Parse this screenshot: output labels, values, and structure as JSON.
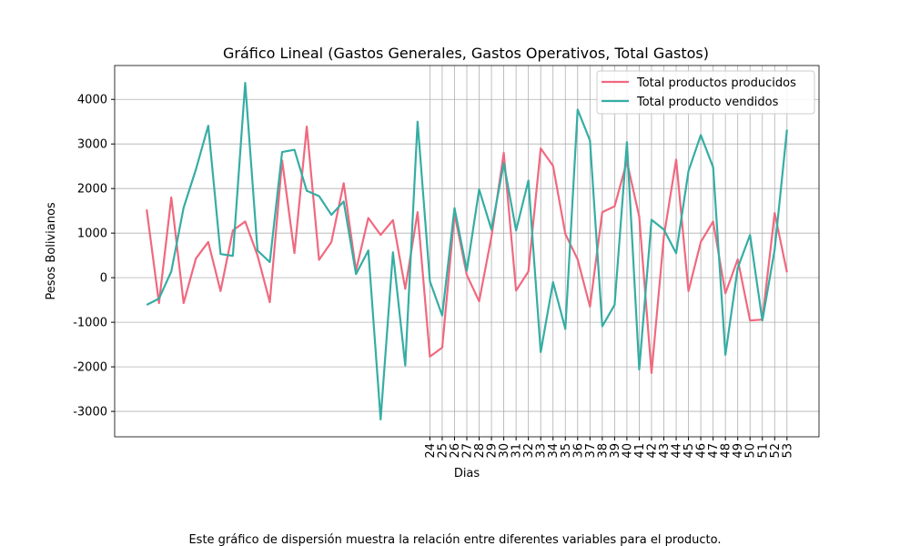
{
  "chart_data": {
    "type": "line",
    "title": "Gráfico Lineal (Gastos Generales, Gastos Operativos, Total Gastos)",
    "xlabel": "Dias",
    "ylabel": "Pesos Bolivianos",
    "caption": "Este gráfico de dispersión muestra la relación entre diferentes variables para el producto.",
    "x": [
      1,
      2,
      3,
      4,
      5,
      6,
      7,
      8,
      9,
      10,
      11,
      12,
      13,
      14,
      15,
      16,
      17,
      18,
      19,
      20,
      21,
      22,
      23,
      24,
      25,
      26,
      27,
      28,
      29,
      30,
      31,
      32,
      33,
      34,
      35,
      36,
      37,
      38,
      39,
      40,
      41,
      42,
      43,
      44,
      45,
      46,
      47,
      48,
      49,
      50,
      51,
      52,
      53
    ],
    "series": [
      {
        "name": "Total productos producidos",
        "color": "#f0697f",
        "values": [
          1530,
          -570,
          1800,
          -570,
          430,
          800,
          -300,
          1060,
          1260,
          500,
          -550,
          2630,
          550,
          3390,
          400,
          800,
          2120,
          160,
          1340,
          960,
          1290,
          -250,
          1470,
          -1770,
          -1570,
          1430,
          60,
          -530,
          920,
          2800,
          -290,
          140,
          2900,
          2510,
          980,
          410,
          -650,
          1470,
          1600,
          2610,
          1370,
          -2140,
          920,
          2650,
          -300,
          800,
          1260,
          -350,
          410,
          -960,
          -940,
          1450,
          120
        ]
      },
      {
        "name": "Total producto vendidos",
        "color": "#36ada4",
        "values": [
          -610,
          -470,
          140,
          1570,
          2430,
          3410,
          530,
          490,
          4370,
          610,
          350,
          2820,
          2870,
          1950,
          1830,
          1410,
          1710,
          80,
          610,
          -3180,
          570,
          -1970,
          3500,
          -80,
          -850,
          1560,
          160,
          1980,
          1080,
          2570,
          1060,
          2180,
          -1670,
          -100,
          -1150,
          3770,
          3080,
          -1090,
          -610,
          3040,
          -2060,
          1300,
          1080,
          550,
          2390,
          3200,
          2480,
          -1730,
          220,
          960,
          -960,
          630,
          3320
        ]
      }
    ],
    "xlim": [
      -1.6,
      55.6
    ],
    "ylim": [
      -3570,
      4760
    ],
    "xticks": [
      24,
      25,
      26,
      27,
      28,
      29,
      30,
      31,
      32,
      33,
      34,
      35,
      36,
      37,
      38,
      39,
      40,
      41,
      42,
      43,
      44,
      45,
      46,
      47,
      48,
      49,
      50,
      51,
      52,
      53
    ],
    "yticks": [
      -3000,
      -2000,
      -1000,
      0,
      1000,
      2000,
      3000,
      4000
    ],
    "grid": true,
    "legend": "upper right"
  }
}
